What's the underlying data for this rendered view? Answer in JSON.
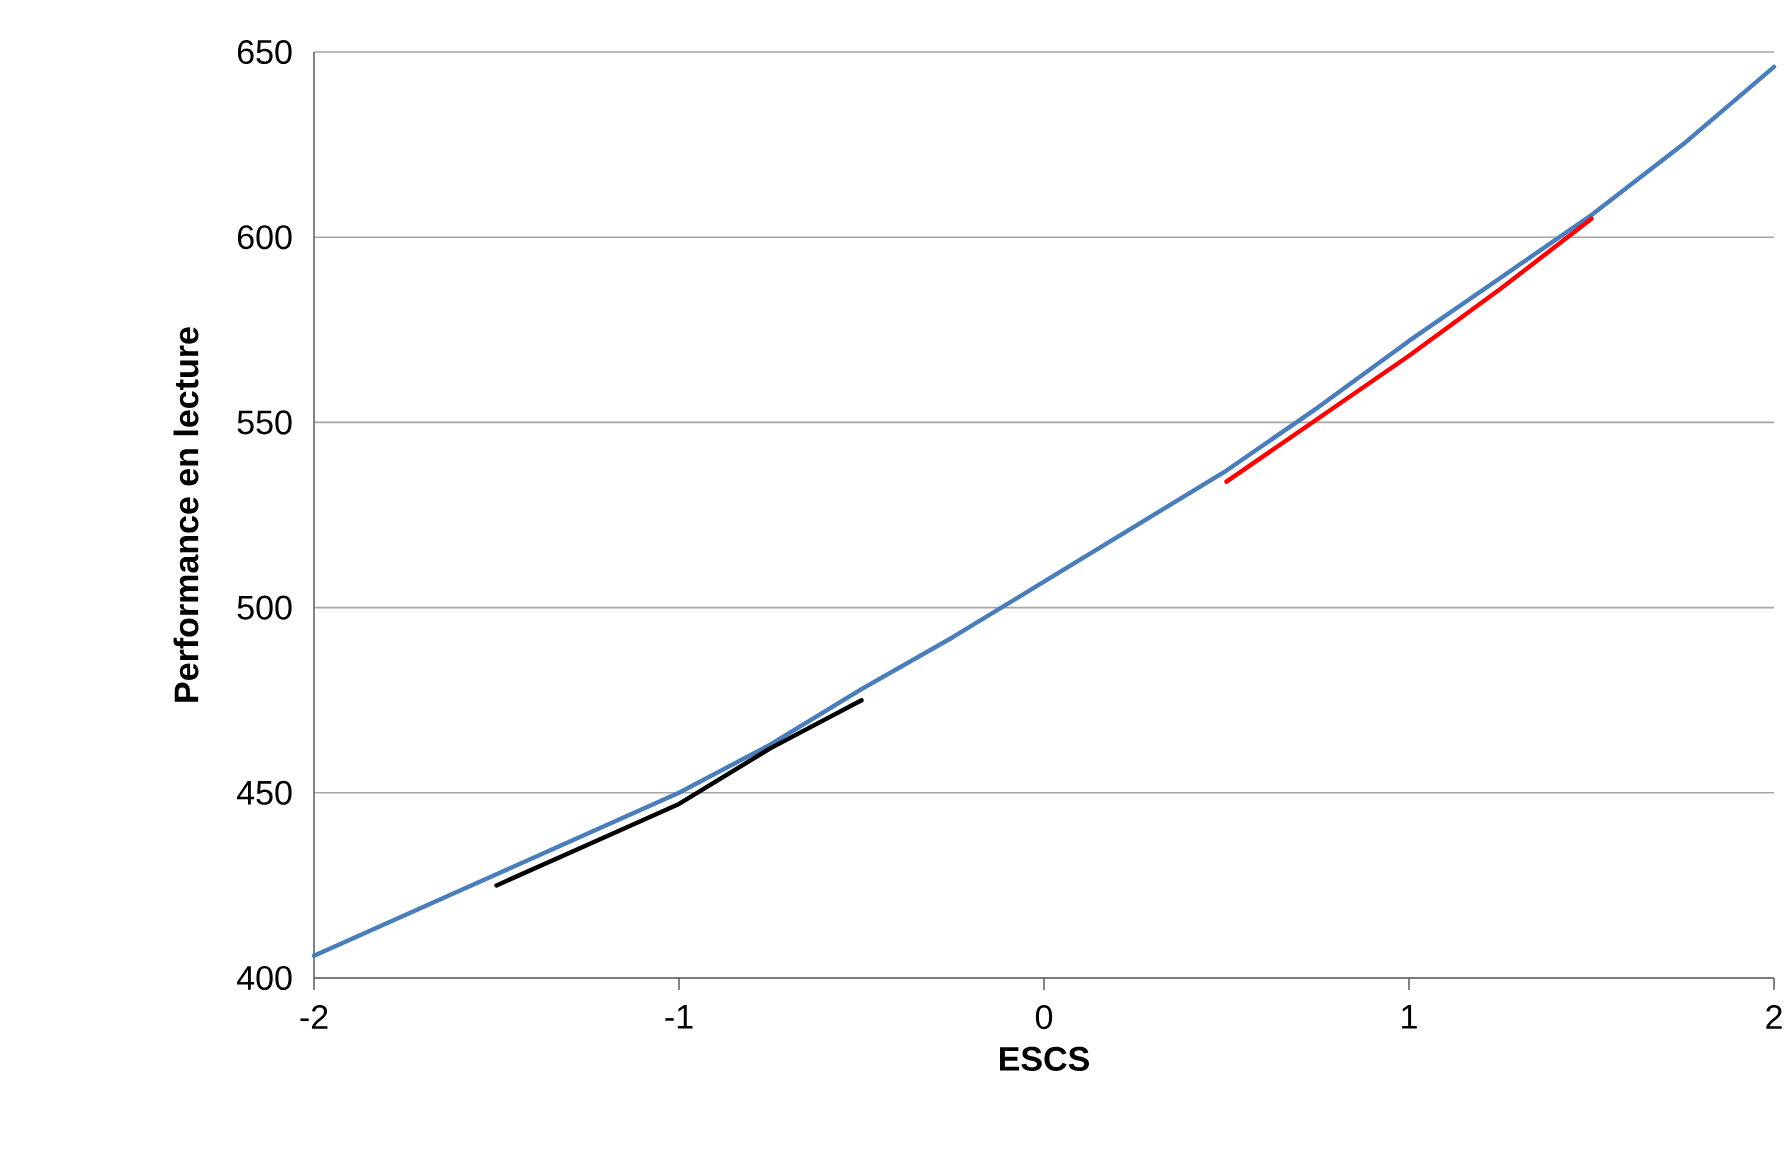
{
  "chart_data": {
    "type": "line",
    "xlabel": "ESCS",
    "ylabel": "Performance en lecture",
    "xlim": [
      -2,
      2
    ],
    "ylim": [
      400,
      650
    ],
    "xticks": [
      -2,
      -1,
      0,
      1,
      2
    ],
    "yticks": [
      400,
      450,
      500,
      550,
      600,
      650
    ],
    "grid": "y",
    "marker": "none",
    "line_style": "solid",
    "series": [
      {
        "color": "#4a7ebb",
        "x": [
          -2,
          -1.75,
          -1.5,
          -1.25,
          -1,
          -0.75,
          -0.5,
          -0.25,
          0,
          0.25,
          0.5,
          0.75,
          1,
          1.25,
          1.5,
          1.75,
          2
        ],
        "values": [
          406,
          417,
          428,
          439,
          450,
          463,
          478,
          492,
          507,
          522,
          537,
          554,
          572,
          589,
          606,
          625,
          646
        ]
      },
      {
        "color": "#000000",
        "x": [
          -1.5,
          -1.25,
          -1,
          -0.75,
          -0.5
        ],
        "values": [
          425,
          436,
          447,
          462,
          475
        ]
      },
      {
        "color": "#ff0000",
        "x": [
          0.5,
          0.75,
          1,
          1.25,
          1.5
        ],
        "values": [
          534,
          551,
          568,
          586,
          605
        ]
      }
    ]
  }
}
